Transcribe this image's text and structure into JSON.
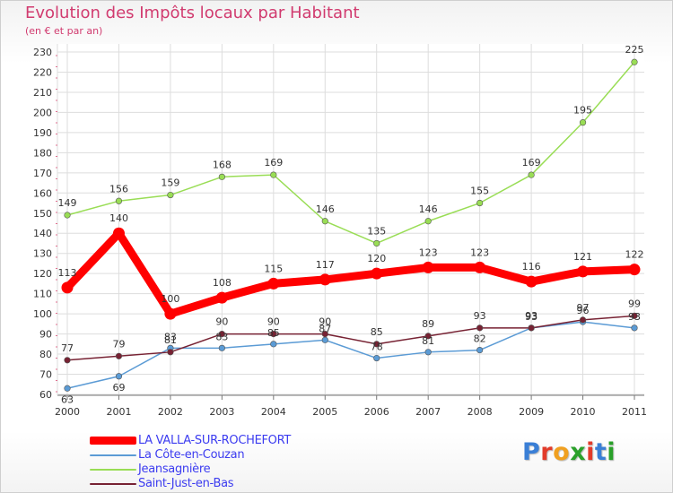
{
  "title": "Evolution des Impôts locaux par Habitant",
  "subtitle": "(en € et par an)",
  "logo": {
    "text": "Proxiti",
    "colors": [
      "#3a7fd6",
      "#e23b2a",
      "#f0a020",
      "#2aa02a",
      "#e23b2a",
      "#3a7fd6",
      "#2aa02a"
    ]
  },
  "chart_data": {
    "type": "line",
    "x": [
      "2000",
      "2001",
      "2002",
      "2003",
      "2004",
      "2005",
      "2006",
      "2007",
      "2008",
      "2009",
      "2010",
      "2011"
    ],
    "ylim": [
      60,
      230
    ],
    "yticks": [
      60,
      70,
      80,
      90,
      100,
      110,
      120,
      130,
      140,
      150,
      160,
      170,
      180,
      190,
      200,
      210,
      220,
      230
    ],
    "grid": true,
    "legend_position": "bottom-left",
    "series": [
      {
        "name": "LA VALLA-SUR-ROCHEFORT",
        "color": "#ff0000",
        "values": [
          113,
          140,
          100,
          108,
          115,
          117,
          120,
          123,
          123,
          116,
          121,
          122
        ]
      },
      {
        "name": "La Côte-en-Couzan",
        "color": "#5b9bd5",
        "values": [
          63,
          69,
          83,
          83,
          85,
          87,
          78,
          81,
          82,
          93,
          96,
          93
        ]
      },
      {
        "name": "Jeansagnière",
        "color": "#99dd55",
        "values": [
          149,
          156,
          159,
          168,
          169,
          146,
          135,
          146,
          155,
          169,
          195,
          225
        ]
      },
      {
        "name": "Saint-Just-en-Bas",
        "color": "#772233",
        "values": [
          77,
          79,
          81,
          90,
          90,
          90,
          85,
          89,
          93,
          93,
          97,
          99
        ]
      }
    ]
  }
}
